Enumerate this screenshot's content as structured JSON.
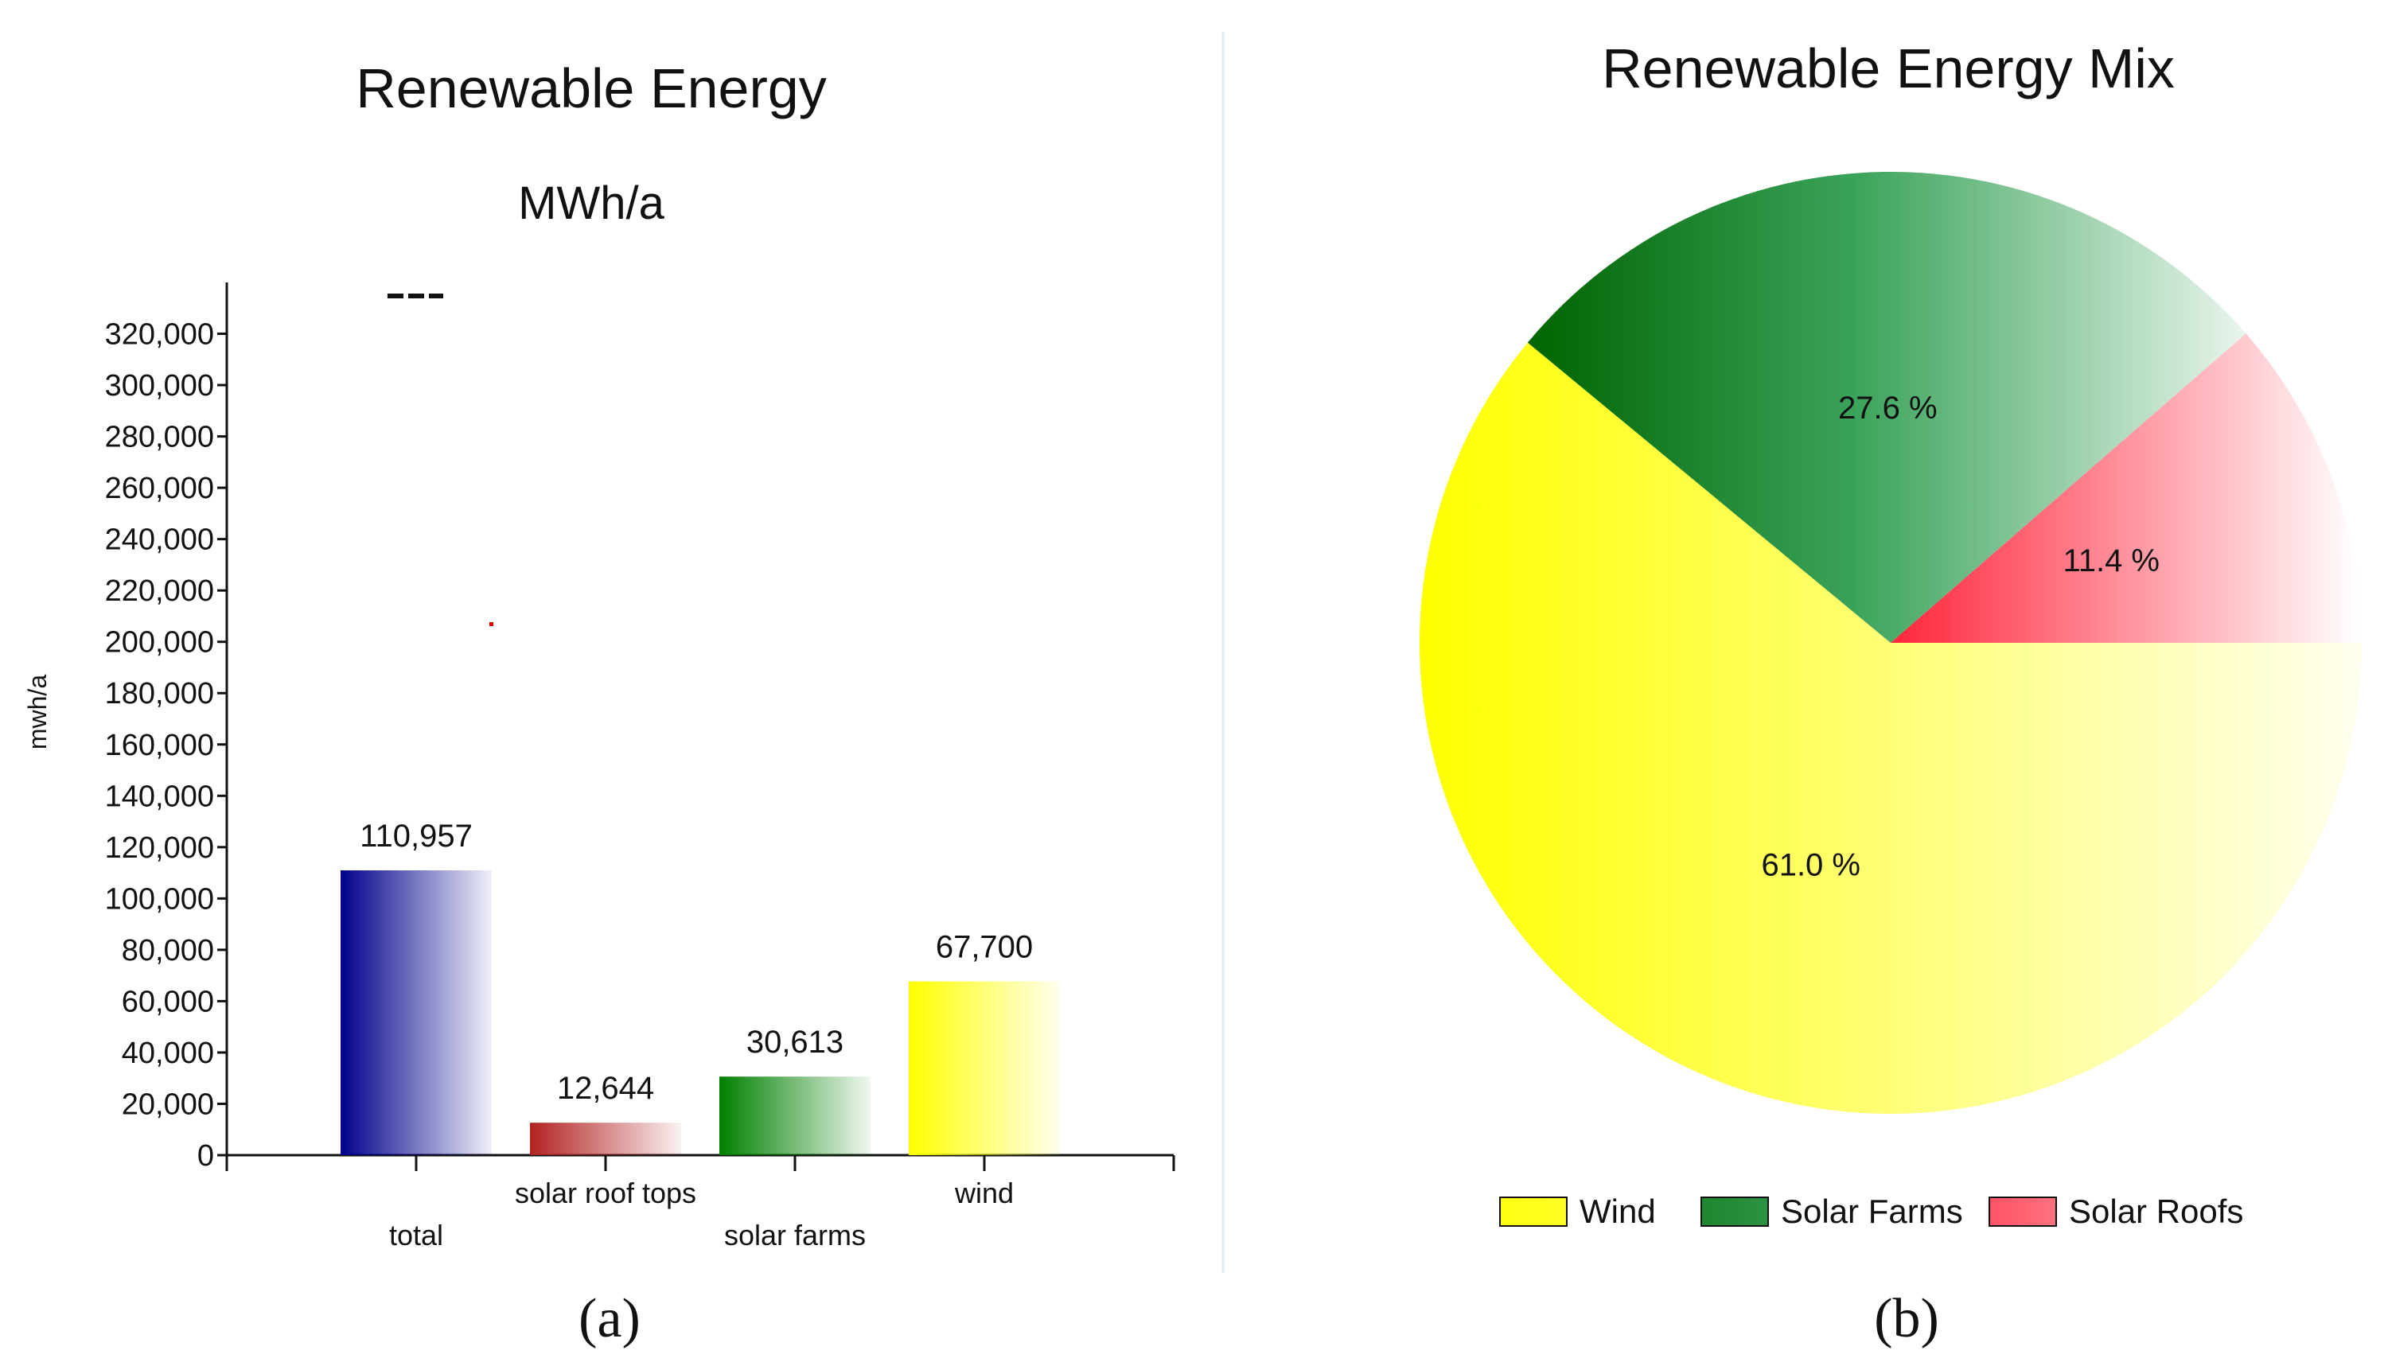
{
  "chart_data": [
    {
      "type": "bar",
      "title": "Renewable Energy",
      "subtitle": "MWh/a",
      "xlabel": "",
      "ylabel": "mwh/a",
      "ylim": [
        0,
        340000
      ],
      "yticks": [
        0,
        20000,
        40000,
        60000,
        80000,
        100000,
        120000,
        140000,
        160000,
        180000,
        200000,
        220000,
        240000,
        260000,
        280000,
        300000,
        320000
      ],
      "yticklabels": [
        "0",
        "20,000",
        "40,000",
        "60,000",
        "80,000",
        "100,000",
        "120,000",
        "140,000",
        "160,000",
        "180,000",
        "200,000",
        "220,000",
        "240,000",
        "260,000",
        "280,000",
        "300,000",
        "320,000"
      ],
      "categories": [
        "total",
        "solar roof tops",
        "solar farms",
        "wind"
      ],
      "values": [
        110957,
        12644,
        30613,
        67700
      ],
      "data_labels": [
        "110,957",
        "12,644",
        "30,613",
        "67,700"
      ],
      "colors": [
        "#00008b",
        "#b22222",
        "#008000",
        "#ffff00"
      ],
      "grid": false,
      "panel_label": "(a)"
    },
    {
      "type": "pie",
      "title": "Renewable Energy Mix",
      "categories": [
        "Wind",
        "Solar Farms",
        "Solar Roofs"
      ],
      "values": [
        61.0,
        27.6,
        11.4
      ],
      "data_labels": [
        "61.0 %",
        "27.6 %",
        "11.4 %"
      ],
      "colors": [
        "#ffff00",
        "#006400",
        "#ff3344"
      ],
      "legend_position": "bottom",
      "panel_label": "(b)"
    }
  ]
}
